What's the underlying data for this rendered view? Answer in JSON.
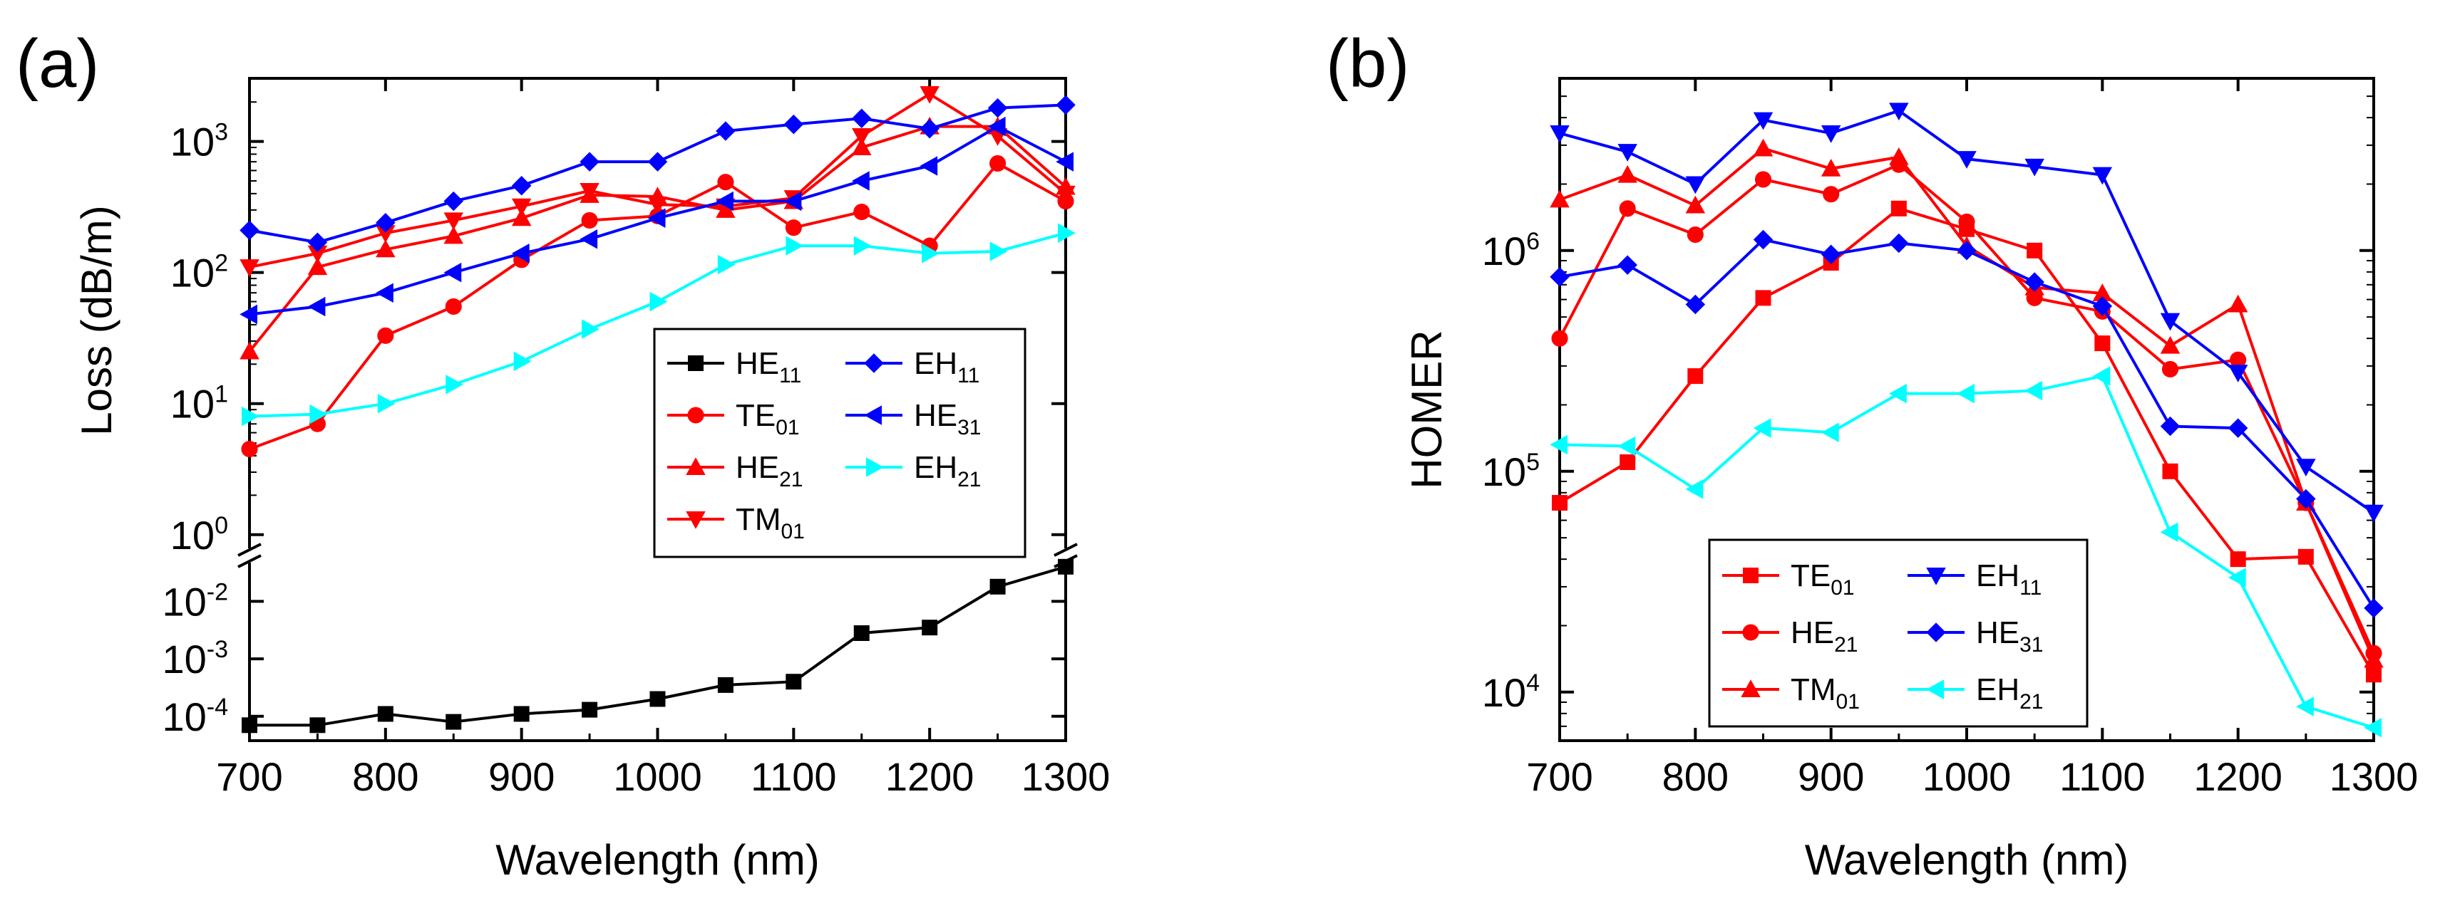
{
  "chart_data": [
    {
      "panel_label": "(a)",
      "type": "line",
      "xlabel": "Wavelength (nm)",
      "ylabel": "Loss (dB/m)",
      "yscale": "log",
      "broken_axis": true,
      "xlim": [
        700,
        1300
      ],
      "xticks": [
        "700",
        "800",
        "900",
        "1000",
        "1100",
        "1200",
        "1300"
      ],
      "yticks_upper": [
        {
          "base": "10",
          "exp": "3"
        },
        {
          "base": "10",
          "exp": "2"
        },
        {
          "base": "10",
          "exp": "1"
        },
        {
          "base": "10",
          "exp": "0"
        }
      ],
      "yticks_lower": [
        {
          "base": "10",
          "exp": "-2"
        },
        {
          "base": "10",
          "exp": "-3"
        },
        {
          "base": "10",
          "exp": "-4"
        }
      ],
      "legend": [
        {
          "base": "HE",
          "sub": "11",
          "color": "#000000",
          "marker": "square"
        },
        {
          "base": "TE",
          "sub": "01",
          "color": "#ff0000",
          "marker": "circle"
        },
        {
          "base": "HE",
          "sub": "21",
          "color": "#ff0000",
          "marker": "triangle-up"
        },
        {
          "base": "TM",
          "sub": "01",
          "color": "#ff0000",
          "marker": "triangle-down"
        },
        {
          "base": "EH",
          "sub": "11",
          "color": "#0000ff",
          "marker": "diamond"
        },
        {
          "base": "HE",
          "sub": "31",
          "color": "#0000ff",
          "marker": "triangle-left"
        },
        {
          "base": "EH",
          "sub": "21",
          "color": "#00ffff",
          "marker": "triangle-right"
        }
      ],
      "x": [
        700,
        750,
        800,
        850,
        900,
        950,
        1000,
        1050,
        1100,
        1150,
        1200,
        1250,
        1300
      ],
      "series": [
        {
          "name": "HE11",
          "color": "#000000",
          "marker": "square",
          "values": [
            7e-05,
            7e-05,
            0.00011,
            8e-05,
            0.00011,
            0.00013,
            0.0002,
            0.00035,
            0.0004,
            0.0028,
            0.0035,
            0.018,
            0.04
          ]
        },
        {
          "name": "TE01",
          "color": "#ff0000",
          "marker": "circle",
          "values": [
            4.5,
            7,
            33,
            55,
            125,
            250,
            270,
            490,
            220,
            290,
            160,
            680,
            350
          ]
        },
        {
          "name": "HE21",
          "color": "#ff0000",
          "marker": "triangle-up",
          "values": [
            25,
            110,
            150,
            190,
            260,
            390,
            380,
            300,
            350,
            900,
            1300,
            1300,
            450
          ]
        },
        {
          "name": "TM01",
          "color": "#ff0000",
          "marker": "triangle-down",
          "values": [
            110,
            140,
            200,
            250,
            320,
            420,
            330,
            320,
            370,
            1100,
            2300,
            1100,
            400
          ]
        },
        {
          "name": "EH11",
          "color": "#0000ff",
          "marker": "diamond",
          "values": [
            210,
            170,
            240,
            350,
            460,
            700,
            700,
            1200,
            1350,
            1500,
            1250,
            1800,
            1900
          ]
        },
        {
          "name": "HE31",
          "color": "#0000ff",
          "marker": "triangle-left",
          "values": [
            48,
            55,
            70,
            100,
            140,
            180,
            260,
            350,
            350,
            500,
            650,
            1300,
            700
          ]
        },
        {
          "name": "EH21",
          "color": "#00ffff",
          "marker": "triangle-right",
          "values": [
            8,
            8.3,
            10,
            14,
            21,
            37,
            60,
            115,
            160,
            160,
            140,
            145,
            200
          ]
        }
      ]
    },
    {
      "panel_label": "(b)",
      "type": "line",
      "xlabel": "Wavelength (nm)",
      "ylabel": "HOMER",
      "yscale": "log",
      "xlim": [
        700,
        1300
      ],
      "xticks": [
        "700",
        "800",
        "900",
        "1000",
        "1100",
        "1200",
        "1300"
      ],
      "yticks": [
        {
          "base": "10",
          "exp": "6"
        },
        {
          "base": "10",
          "exp": "5"
        },
        {
          "base": "10",
          "exp": "4"
        }
      ],
      "legend": [
        {
          "base": "TE",
          "sub": "01",
          "color": "#ff0000",
          "marker": "square"
        },
        {
          "base": "HE",
          "sub": "21",
          "color": "#ff0000",
          "marker": "circle"
        },
        {
          "base": "TM",
          "sub": "01",
          "color": "#ff0000",
          "marker": "triangle-up"
        },
        {
          "base": "EH",
          "sub": "11",
          "color": "#0000ff",
          "marker": "triangle-down"
        },
        {
          "base": "HE",
          "sub": "31",
          "color": "#0000ff",
          "marker": "diamond"
        },
        {
          "base": "EH",
          "sub": "21",
          "color": "#00ffff",
          "marker": "triangle-left"
        }
      ],
      "x": [
        700,
        750,
        800,
        850,
        900,
        950,
        1000,
        1050,
        1100,
        1150,
        1200,
        1250,
        1300
      ],
      "series": [
        {
          "name": "TE01",
          "color": "#ff0000",
          "marker": "square",
          "values": [
            72000,
            110000,
            270000,
            610000,
            880000,
            1550000,
            1250000,
            1000000,
            380000,
            100000,
            40000,
            41000,
            12000
          ]
        },
        {
          "name": "HE21",
          "color": "#ff0000",
          "marker": "circle",
          "values": [
            400000,
            1550000,
            1180000,
            2100000,
            1800000,
            2450000,
            1350000,
            610000,
            530000,
            290000,
            320000,
            72000,
            15000
          ]
        },
        {
          "name": "TM01",
          "color": "#ff0000",
          "marker": "triangle-up",
          "values": [
            1700000,
            2200000,
            1600000,
            2900000,
            2350000,
            2650000,
            1050000,
            680000,
            640000,
            370000,
            570000,
            72000,
            14000
          ]
        },
        {
          "name": "EH11",
          "color": "#0000ff",
          "marker": "triangle-down",
          "values": [
            3400000,
            2800000,
            2000000,
            3900000,
            3400000,
            4300000,
            2600000,
            2400000,
            2200000,
            480000,
            280000,
            105000,
            65000
          ]
        },
        {
          "name": "HE31",
          "color": "#0000ff",
          "marker": "diamond",
          "values": [
            760000,
            860000,
            570000,
            1120000,
            960000,
            1080000,
            1000000,
            720000,
            560000,
            160000,
            157000,
            75000,
            24000
          ]
        },
        {
          "name": "EH21",
          "color": "#00ffff",
          "marker": "triangle-left",
          "values": [
            132000,
            130000,
            83000,
            157000,
            150000,
            225000,
            225000,
            232000,
            270000,
            53000,
            33000,
            8600,
            6900
          ]
        }
      ]
    }
  ]
}
